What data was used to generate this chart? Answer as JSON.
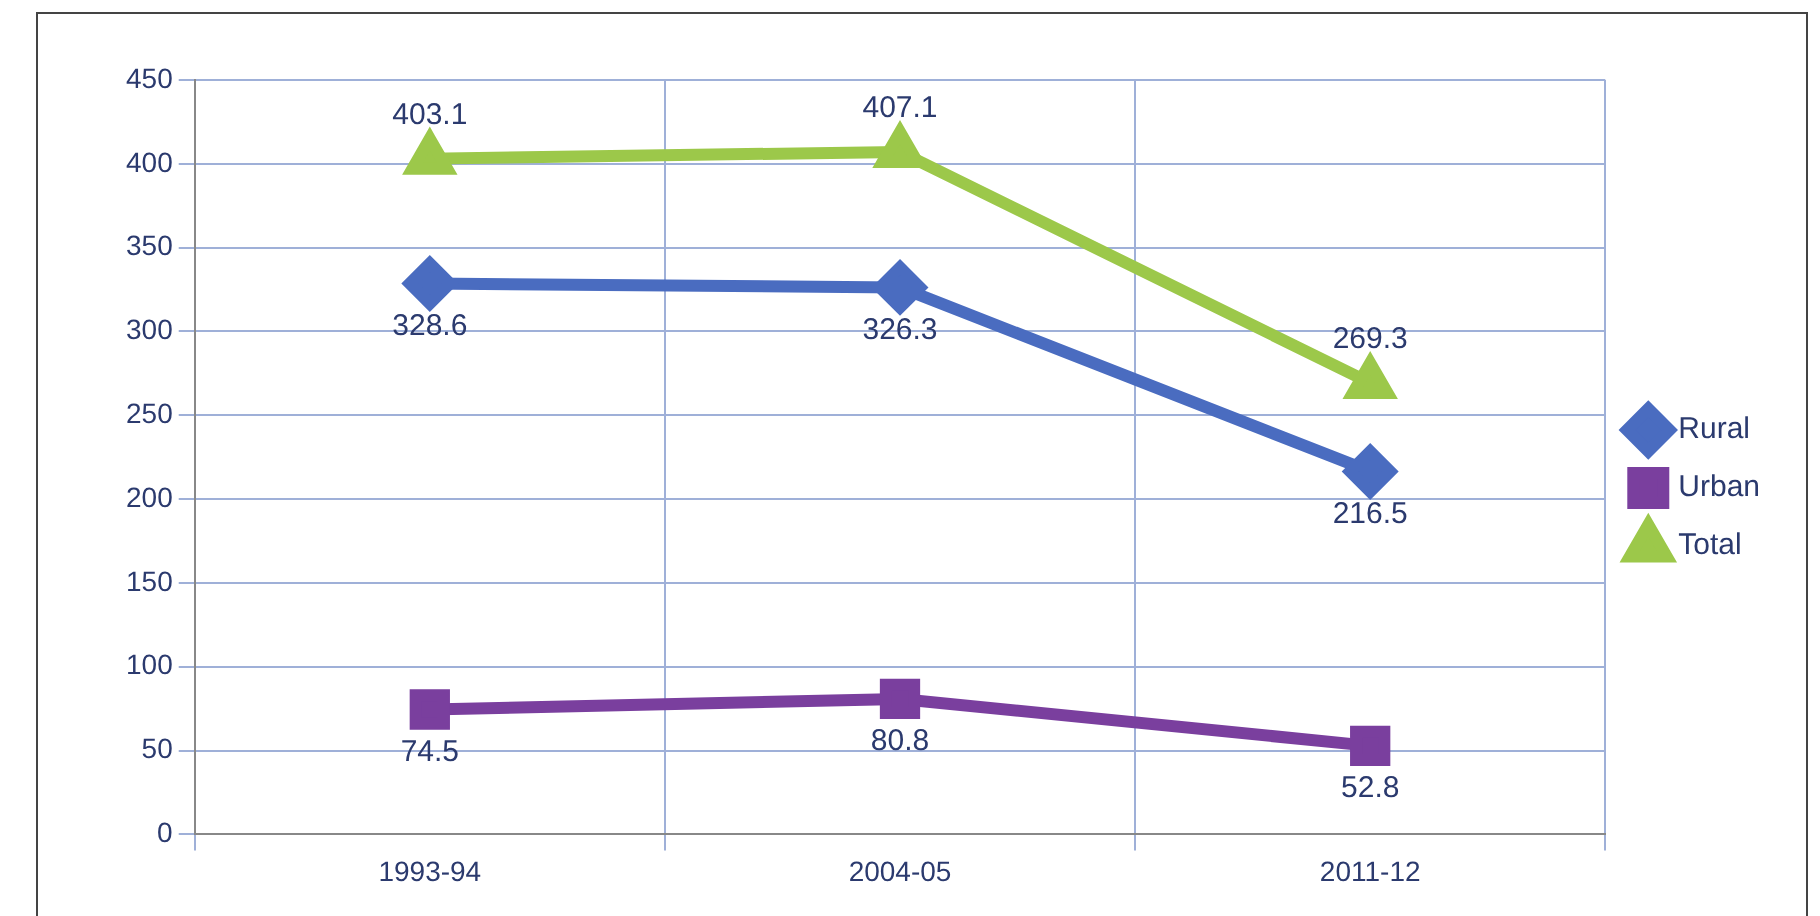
{
  "chart_data": {
    "type": "line",
    "categories": [
      "1993-94",
      "2004-05",
      "2011-12"
    ],
    "series": [
      {
        "name": "Rural",
        "color": "#4a6cc0",
        "values": [
          328.6,
          326.3,
          216.5
        ],
        "marker": "diamond"
      },
      {
        "name": "Urban",
        "color": "#7a3f9e",
        "values": [
          74.5,
          80.8,
          52.8
        ],
        "marker": "square"
      },
      {
        "name": "Total",
        "color": "#9cc84a",
        "values": [
          403.1,
          407.1,
          269.3
        ],
        "marker": "triangle"
      }
    ],
    "ylim": [
      0,
      450
    ],
    "yticks": [
      0,
      50,
      100,
      150,
      200,
      250,
      300,
      350,
      400,
      450
    ],
    "grid": true,
    "legend": "right",
    "data_labels": true
  }
}
